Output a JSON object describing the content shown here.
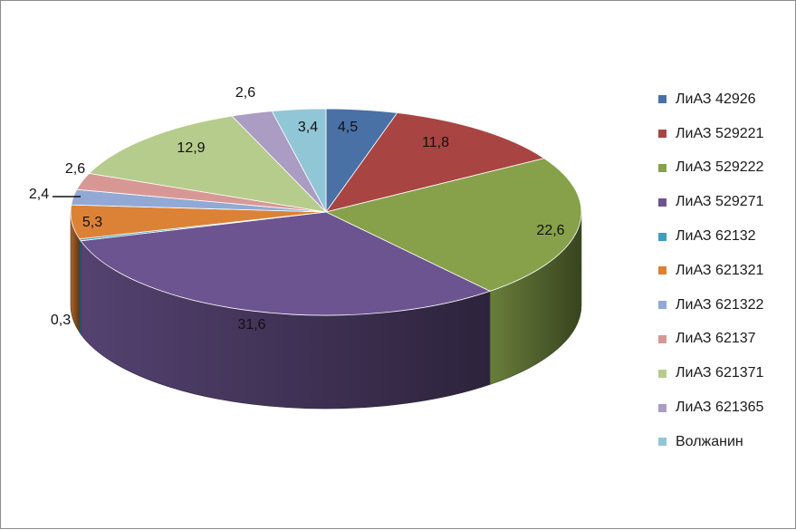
{
  "chart_data": {
    "type": "pie",
    "style": "3d",
    "title": "",
    "categories": [
      "ЛиАЗ 42926",
      "ЛиАЗ 529221",
      "ЛиАЗ 529222",
      "ЛиАЗ 529271",
      "ЛиАЗ 62132",
      "ЛиАЗ 621321",
      "ЛиАЗ 621322",
      "ЛиАЗ 62137",
      "ЛиАЗ 621371",
      "ЛиАЗ 621365",
      "Волжанин"
    ],
    "values": [
      4.5,
      11.8,
      22.6,
      31.6,
      0.3,
      5.3,
      2.4,
      2.6,
      12.9,
      2.6,
      3.4
    ],
    "value_labels": [
      "4,5",
      "11,8",
      "22,6",
      "31,6",
      "0,3",
      "5,3",
      "2,4",
      "2,6",
      "12,9",
      "2,6",
      "3,4"
    ],
    "colors": [
      "#4a71a6",
      "#a84442",
      "#86a14a",
      "#6c5490",
      "#3f9fba",
      "#dc8236",
      "#91a9d4",
      "#d79895",
      "#b6cc8c",
      "#aa9cc3",
      "#91c6d6"
    ],
    "legend_position": "right"
  }
}
